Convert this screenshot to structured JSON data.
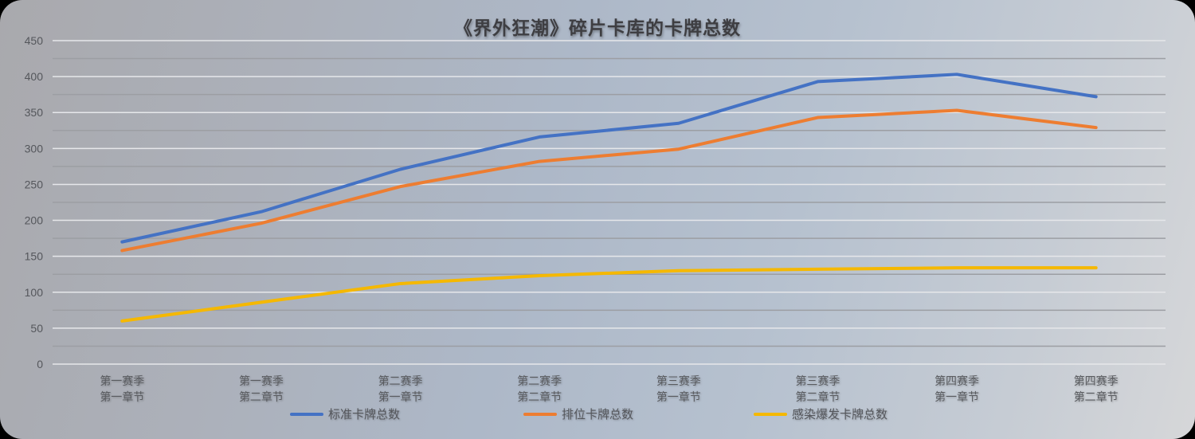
{
  "chart_data": {
    "type": "line",
    "title": "《界外狂潮》碎片卡库的卡牌总数",
    "xlabel": "",
    "ylabel": "",
    "ylim": [
      0,
      450
    ],
    "yticks": [
      0,
      50,
      100,
      150,
      200,
      250,
      300,
      350,
      400,
      450
    ],
    "grid": true,
    "legend_position": "bottom",
    "categories": [
      [
        "第一赛季",
        "第一章节"
      ],
      [
        "第一赛季",
        "第二章节"
      ],
      [
        "第二赛季",
        "第一章节"
      ],
      [
        "第二赛季",
        "第二章节"
      ],
      [
        "第三赛季",
        "第一章节"
      ],
      [
        "第三赛季",
        "第二章节"
      ],
      [
        "第四赛季",
        "第一章节"
      ],
      [
        "第四赛季",
        "第二章节"
      ]
    ],
    "series": [
      {
        "name": "标准卡牌总数",
        "color": "#4472c4",
        "values": [
          170,
          212,
          271,
          316,
          335,
          393,
          403,
          372
        ]
      },
      {
        "name": "排位卡牌总数",
        "color": "#ed7d31",
        "values": [
          158,
          196,
          247,
          282,
          299,
          343,
          353,
          329
        ]
      },
      {
        "name": "感染爆发卡牌总数",
        "color": "#f5b800",
        "values": [
          60,
          86,
          112,
          123,
          130,
          132,
          134,
          134
        ]
      }
    ]
  }
}
